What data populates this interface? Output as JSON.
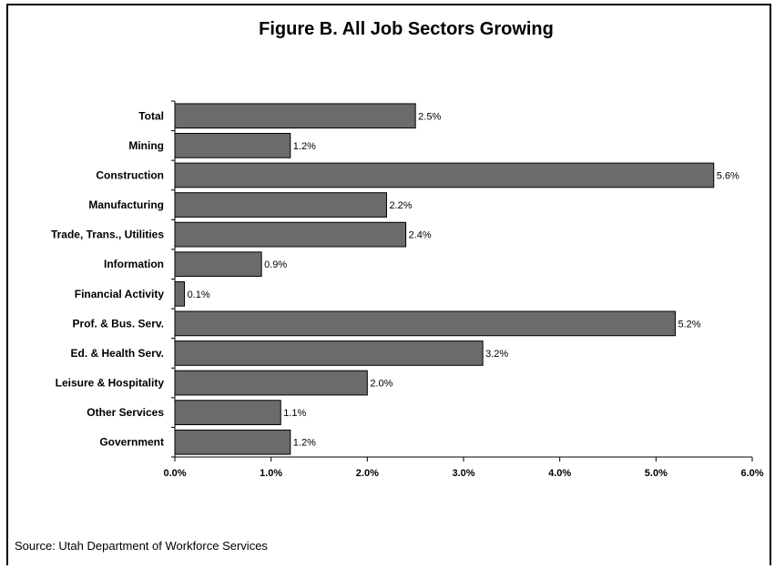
{
  "chart_data": {
    "type": "bar",
    "orientation": "horizontal",
    "title": "Figure B.  All Job Sectors Growing",
    "categories": [
      "Total",
      "Mining",
      "Construction",
      "Manufacturing",
      "Trade, Trans., Utilities",
      "Information",
      "Financial Activity",
      "Prof. & Bus. Serv.",
      "Ed. & Health Serv.",
      "Leisure & Hospitality",
      "Other Services",
      "Government"
    ],
    "values": [
      2.5,
      1.2,
      5.6,
      2.2,
      2.4,
      0.9,
      0.1,
      5.2,
      3.2,
      2.0,
      1.1,
      1.2
    ],
    "data_labels": [
      "2.5%",
      "1.2%",
      "5.6%",
      "2.2%",
      "2.4%",
      "0.9%",
      "0.1%",
      "5.2%",
      "3.2%",
      "2.0%",
      "1.1%",
      "1.2%"
    ],
    "xlim": [
      0,
      6
    ],
    "x_ticks": [
      0,
      1,
      2,
      3,
      4,
      5,
      6
    ],
    "x_tick_labels": [
      "0.0%",
      "1.0%",
      "2.0%",
      "3.0%",
      "4.0%",
      "5.0%",
      "6.0%"
    ],
    "xlabel": "",
    "ylabel": "",
    "grid": false,
    "bar_color": "#6b6b6b",
    "bar_edge_color": "#000000"
  },
  "source": "Source: Utah Department of Workforce Services"
}
